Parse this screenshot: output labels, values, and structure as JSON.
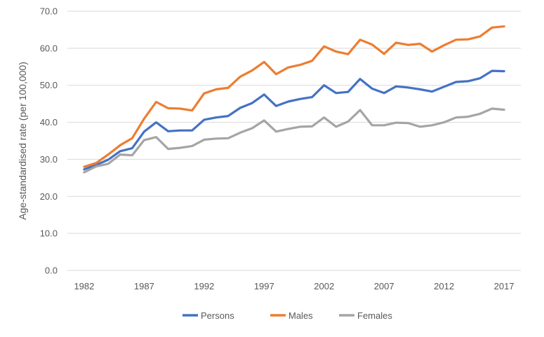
{
  "chart_data": {
    "type": "line",
    "title": "",
    "xlabel": "",
    "ylabel": "Age-standardised rate (per 100,000)",
    "ylim": [
      0,
      70
    ],
    "yticks": [
      "0.0",
      "10.0",
      "20.0",
      "30.0",
      "40.0",
      "50.0",
      "60.0",
      "70.0"
    ],
    "xticks": [
      "1982",
      "1987",
      "1992",
      "1997",
      "2002",
      "2007",
      "2012",
      "2017"
    ],
    "grid": true,
    "legend_position": "bottom",
    "x": [
      1982,
      1983,
      1984,
      1985,
      1986,
      1987,
      1988,
      1989,
      1990,
      1991,
      1992,
      1993,
      1994,
      1995,
      1996,
      1997,
      1998,
      1999,
      2000,
      2001,
      2002,
      2003,
      2004,
      2005,
      2006,
      2007,
      2008,
      2009,
      2010,
      2011,
      2012,
      2013,
      2014,
      2015,
      2016,
      2017
    ],
    "series": [
      {
        "name": "Persons",
        "color": "#4472C4",
        "values": [
          27.3,
          28.5,
          29.9,
          32.2,
          33.0,
          37.5,
          40.0,
          37.6,
          37.8,
          37.8,
          40.7,
          41.3,
          41.7,
          43.9,
          45.2,
          47.5,
          44.4,
          45.6,
          46.3,
          46.8,
          50.0,
          47.9,
          48.2,
          51.7,
          49.1,
          47.9,
          49.7,
          49.4,
          48.9,
          48.3,
          49.6,
          50.9,
          51.1,
          51.9,
          53.9,
          53.8
        ]
      },
      {
        "name": "Males",
        "color": "#ED7D31",
        "values": [
          28.0,
          29.0,
          31.3,
          33.8,
          35.7,
          41.0,
          45.5,
          43.8,
          43.7,
          43.2,
          47.8,
          48.9,
          49.3,
          52.3,
          54.0,
          56.3,
          53.0,
          54.8,
          55.5,
          56.6,
          60.5,
          59.1,
          58.4,
          62.3,
          61.0,
          58.5,
          61.5,
          60.9,
          61.2,
          59.1,
          60.8,
          62.3,
          62.4,
          63.2,
          65.6,
          65.9
        ]
      },
      {
        "name": "Females",
        "color": "#A5A5A5",
        "values": [
          26.5,
          28.1,
          28.8,
          31.3,
          31.1,
          35.2,
          36.0,
          32.8,
          33.1,
          33.6,
          35.3,
          35.6,
          35.7,
          37.2,
          38.4,
          40.5,
          37.5,
          38.2,
          38.8,
          38.9,
          41.3,
          38.8,
          40.2,
          43.3,
          39.2,
          39.2,
          39.9,
          39.8,
          38.8,
          39.2,
          40.0,
          41.3,
          41.5,
          42.3,
          43.7,
          43.4
        ]
      }
    ]
  }
}
